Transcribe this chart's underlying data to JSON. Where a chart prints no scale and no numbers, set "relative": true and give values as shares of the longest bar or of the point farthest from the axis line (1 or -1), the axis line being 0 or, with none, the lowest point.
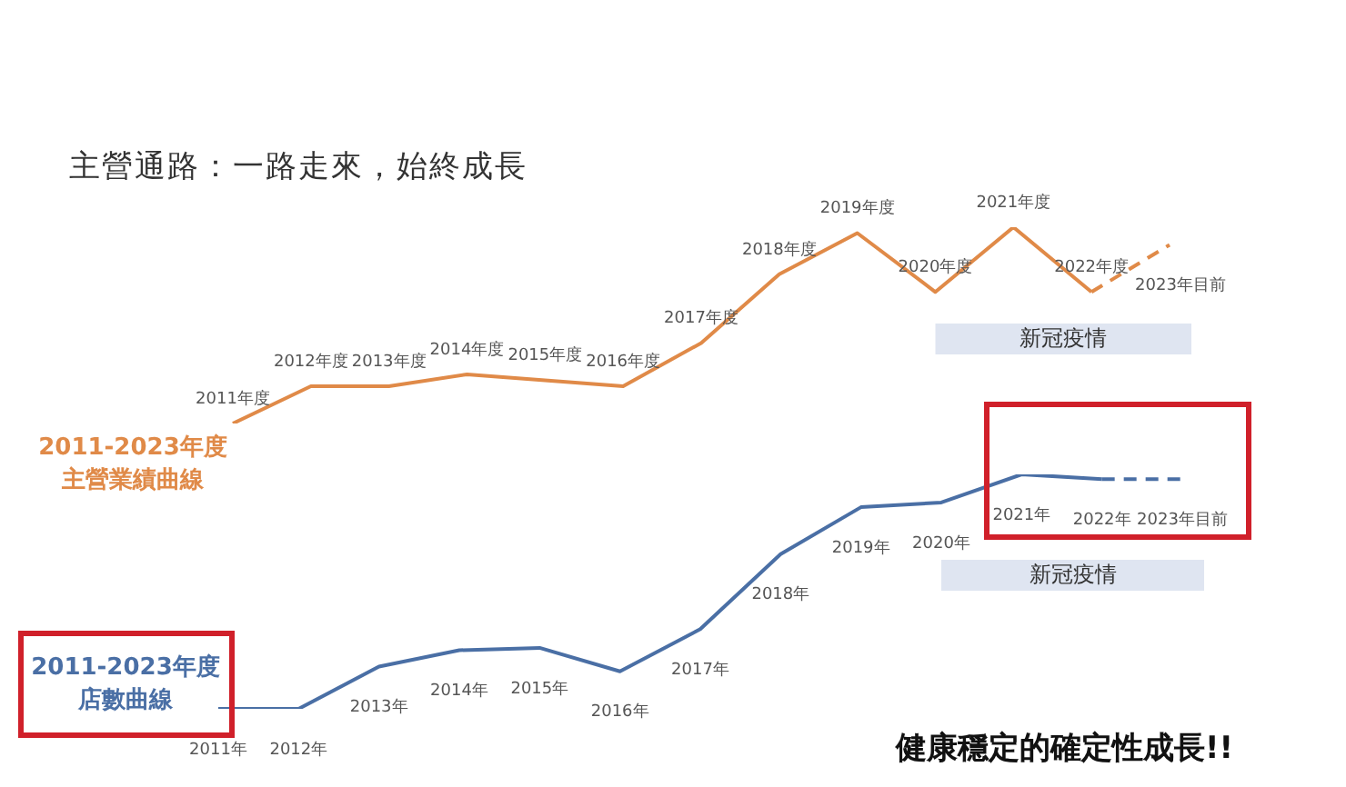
{
  "chart_data": [
    {
      "type": "line",
      "title": "主營通路：一路走來，始終成長",
      "relative": true,
      "legend": false,
      "marker": "none",
      "categories": [
        "2011年度",
        "2012年度",
        "2013年度",
        "2014年度",
        "2015年度",
        "2016年度",
        "2017年度",
        "2018年度",
        "2019年度",
        "2020年度",
        "2021年度",
        "2022年度",
        "2023年目前"
      ],
      "series": [
        {
          "name": "2011-2023年度主營業績曲線",
          "color": "#e08a48",
          "line_style": "solid",
          "values": [
            0,
            0.19,
            0.19,
            0.25,
            0.22,
            0.19,
            0.41,
            0.76,
            0.97,
            0.67,
            1,
            0.67,
            null
          ]
        },
        {
          "color": "#e08a48",
          "line_style": "dashed",
          "values": [
            null,
            null,
            null,
            null,
            null,
            null,
            null,
            null,
            null,
            null,
            null,
            0.67,
            0.91
          ]
        }
      ],
      "bands": [
        {
          "axis": "x",
          "from": "2020年度",
          "to": "2023年目前",
          "label": "新冠疫情",
          "color": "#dfe5f1"
        }
      ]
    },
    {
      "type": "line",
      "relative": true,
      "legend": false,
      "marker": "none",
      "categories": [
        "2011年",
        "2012年",
        "2013年",
        "2014年",
        "2015年",
        "2016年",
        "2017年",
        "2018年",
        "2019年",
        "2020年",
        "2021年",
        "2022年",
        "2023年目前"
      ],
      "series": [
        {
          "name": "2011-2023年度店數曲線",
          "color": "#4a6fa5",
          "line_style": "solid",
          "values": [
            0,
            0,
            0.18,
            0.25,
            0.26,
            0.16,
            0.34,
            0.66,
            0.86,
            0.88,
            1,
            0.98,
            null
          ]
        },
        {
          "color": "#4a6fa5",
          "line_style": "dashed",
          "values": [
            null,
            null,
            null,
            null,
            null,
            null,
            null,
            null,
            null,
            null,
            null,
            0.98,
            0.98
          ]
        }
      ],
      "bands": [
        {
          "axis": "x",
          "from": "2020年",
          "to": "2023年目前",
          "label": "新冠疫情",
          "color": "#dfe5f1"
        }
      ],
      "annotations": [
        "健康穩定的確定性成長!!"
      ]
    }
  ]
}
